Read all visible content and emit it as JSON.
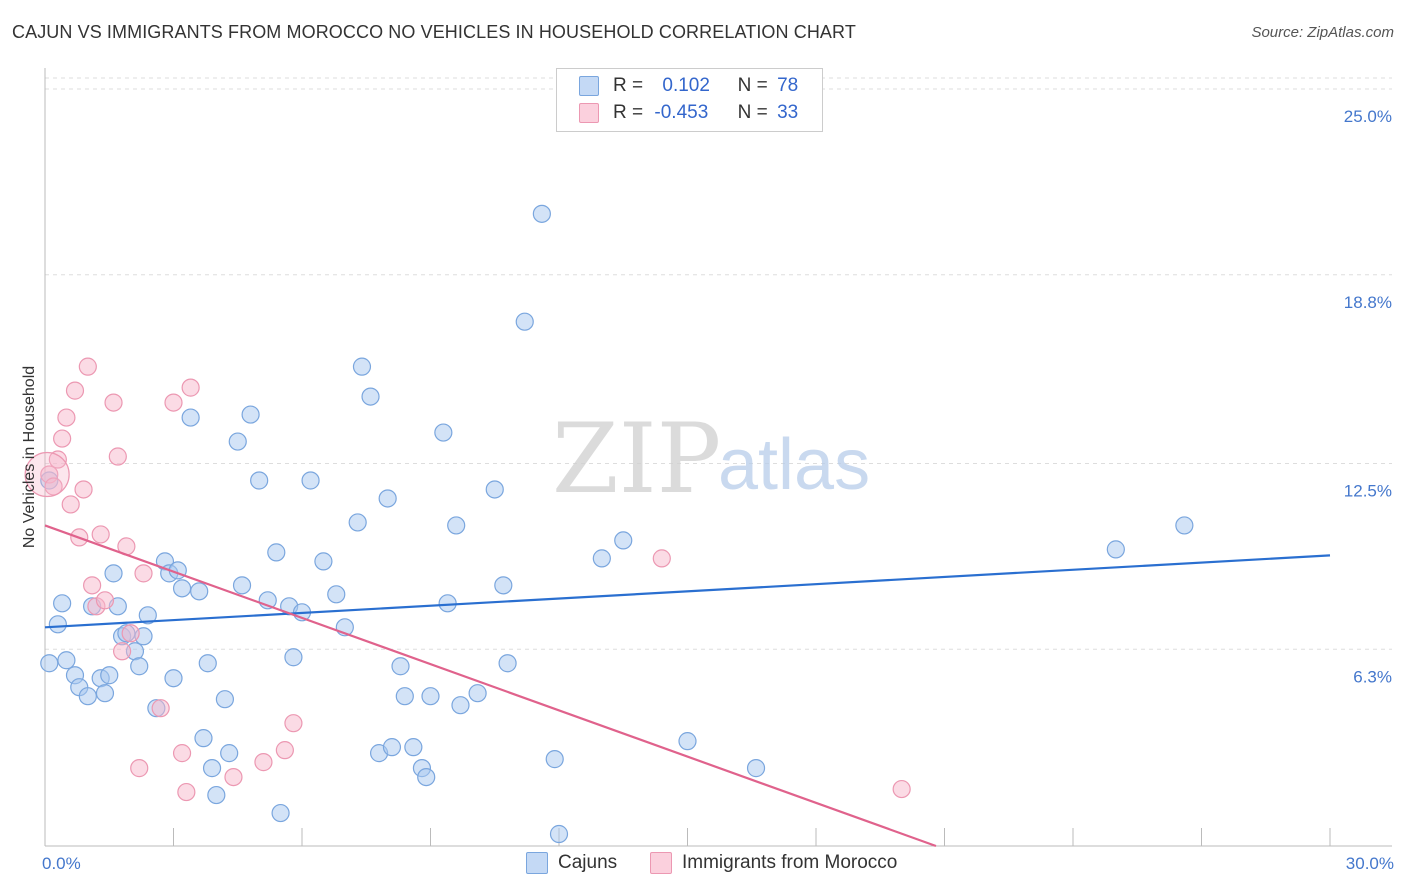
{
  "header": {
    "title": "CAJUN VS IMMIGRANTS FROM MOROCCO NO VEHICLES IN HOUSEHOLD CORRELATION CHART",
    "source": "Source: ZipAtlas.com"
  },
  "watermark": {
    "zip": "ZIP",
    "atlas": "atlas"
  },
  "legend": {
    "rows": [
      {
        "r_label": "R =",
        "r_value": "0.102",
        "n_label": "N =",
        "n_value": "78"
      },
      {
        "r_label": "R =",
        "r_value": "-0.453",
        "n_label": "N =",
        "n_value": "33"
      }
    ]
  },
  "bottom_legend": {
    "series_1": "Cajuns",
    "series_2": "Immigrants from Morocco"
  },
  "colors": {
    "cajun_fill": "#a8c8f0",
    "cajun_stroke": "#7aa6de",
    "cajun_line": "#2a6fd0",
    "morocco_fill": "#f7b8cc",
    "morocco_stroke": "#ec98b2",
    "morocco_line": "#e0628c",
    "tick_text": "#4477cc"
  },
  "chart_data": {
    "type": "scatter",
    "title": "CAJUN VS IMMIGRANTS FROM MOROCCO NO VEHICLES IN HOUSEHOLD CORRELATION CHART",
    "xlabel": "",
    "ylabel": "No Vehicles in Household",
    "xlim": [
      0,
      30
    ],
    "ylim": [
      0,
      25.0
    ],
    "x_tick_labels": [
      "0.0%",
      "30.0%"
    ],
    "y_ticks": [
      6.3,
      12.5,
      18.8,
      25.0
    ],
    "y_tick_labels": [
      "6.3%",
      "12.5%",
      "18.8%",
      "25.0%"
    ],
    "grid": "horizontal dashed",
    "legend_position": "top-center",
    "series": [
      {
        "name": "Cajuns",
        "r": 0.102,
        "n": 78,
        "trend": [
          [
            0,
            7.3
          ],
          [
            30,
            9.7
          ]
        ],
        "points": [
          [
            0.1,
            12.2
          ],
          [
            0.1,
            6.1
          ],
          [
            0.3,
            7.4
          ],
          [
            0.4,
            8.1
          ],
          [
            0.5,
            6.2
          ],
          [
            0.7,
            5.7
          ],
          [
            0.8,
            5.3
          ],
          [
            1.0,
            5.0
          ],
          [
            1.1,
            8.0
          ],
          [
            1.3,
            5.6
          ],
          [
            1.4,
            5.1
          ],
          [
            1.5,
            5.7
          ],
          [
            1.6,
            9.1
          ],
          [
            1.7,
            8.0
          ],
          [
            1.8,
            7.0
          ],
          [
            1.9,
            7.1
          ],
          [
            2.1,
            6.5
          ],
          [
            2.2,
            6.0
          ],
          [
            2.3,
            7.0
          ],
          [
            2.4,
            7.7
          ],
          [
            2.6,
            4.6
          ],
          [
            2.8,
            9.5
          ],
          [
            2.9,
            9.1
          ],
          [
            3.0,
            5.6
          ],
          [
            3.1,
            9.2
          ],
          [
            3.2,
            8.6
          ],
          [
            3.4,
            14.3
          ],
          [
            3.6,
            8.5
          ],
          [
            3.7,
            3.6
          ],
          [
            3.8,
            6.1
          ],
          [
            3.9,
            2.6
          ],
          [
            4.0,
            1.7
          ],
          [
            4.2,
            4.9
          ],
          [
            4.3,
            3.1
          ],
          [
            4.5,
            13.5
          ],
          [
            4.6,
            8.7
          ],
          [
            4.8,
            14.4
          ],
          [
            5.0,
            12.2
          ],
          [
            5.2,
            8.2
          ],
          [
            5.4,
            9.8
          ],
          [
            5.5,
            1.1
          ],
          [
            5.7,
            8.0
          ],
          [
            5.8,
            6.3
          ],
          [
            6.0,
            7.8
          ],
          [
            6.2,
            12.2
          ],
          [
            6.5,
            9.5
          ],
          [
            6.8,
            8.4
          ],
          [
            7.0,
            7.3
          ],
          [
            7.3,
            10.8
          ],
          [
            7.4,
            16.0
          ],
          [
            7.6,
            15.0
          ],
          [
            7.8,
            3.1
          ],
          [
            8.0,
            11.6
          ],
          [
            8.1,
            3.3
          ],
          [
            8.3,
            6.0
          ],
          [
            8.4,
            5.0
          ],
          [
            8.6,
            3.3
          ],
          [
            8.8,
            2.6
          ],
          [
            8.9,
            2.3
          ],
          [
            9.0,
            5.0
          ],
          [
            9.3,
            13.8
          ],
          [
            9.4,
            8.1
          ],
          [
            9.6,
            10.7
          ],
          [
            9.7,
            4.7
          ],
          [
            10.1,
            5.1
          ],
          [
            10.5,
            11.9
          ],
          [
            10.7,
            8.7
          ],
          [
            10.8,
            6.1
          ],
          [
            11.2,
            17.5
          ],
          [
            11.6,
            21.1
          ],
          [
            12.0,
            0.4
          ],
          [
            11.9,
            2.9
          ],
          [
            13.0,
            9.6
          ],
          [
            13.5,
            10.2
          ],
          [
            15.0,
            3.5
          ],
          [
            16.6,
            2.6
          ],
          [
            25.0,
            9.9
          ],
          [
            26.6,
            10.7
          ]
        ]
      },
      {
        "name": "Immigrants from Morocco",
        "r": -0.453,
        "n": 33,
        "trend": [
          [
            0,
            10.7
          ],
          [
            20.8,
            0
          ]
        ],
        "points": [
          [
            0.1,
            12.4
          ],
          [
            0.2,
            12.0
          ],
          [
            0.3,
            12.9
          ],
          [
            0.4,
            13.6
          ],
          [
            0.5,
            14.3
          ],
          [
            0.6,
            11.4
          ],
          [
            0.7,
            15.2
          ],
          [
            0.8,
            10.3
          ],
          [
            0.9,
            11.9
          ],
          [
            1.0,
            16.0
          ],
          [
            1.1,
            8.7
          ],
          [
            1.2,
            8.0
          ],
          [
            1.3,
            10.4
          ],
          [
            1.4,
            8.2
          ],
          [
            1.6,
            14.8
          ],
          [
            1.7,
            13.0
          ],
          [
            1.8,
            6.5
          ],
          [
            1.9,
            10.0
          ],
          [
            2.0,
            7.1
          ],
          [
            2.2,
            2.6
          ],
          [
            2.3,
            9.1
          ],
          [
            2.7,
            4.6
          ],
          [
            3.0,
            14.8
          ],
          [
            3.2,
            3.1
          ],
          [
            3.3,
            1.8
          ],
          [
            3.4,
            15.3
          ],
          [
            4.4,
            2.3
          ],
          [
            5.1,
            2.8
          ],
          [
            5.6,
            3.2
          ],
          [
            5.8,
            4.1
          ],
          [
            14.4,
            9.6
          ],
          [
            20.0,
            1.9
          ],
          [
            0.05,
            12.4
          ]
        ]
      }
    ]
  }
}
